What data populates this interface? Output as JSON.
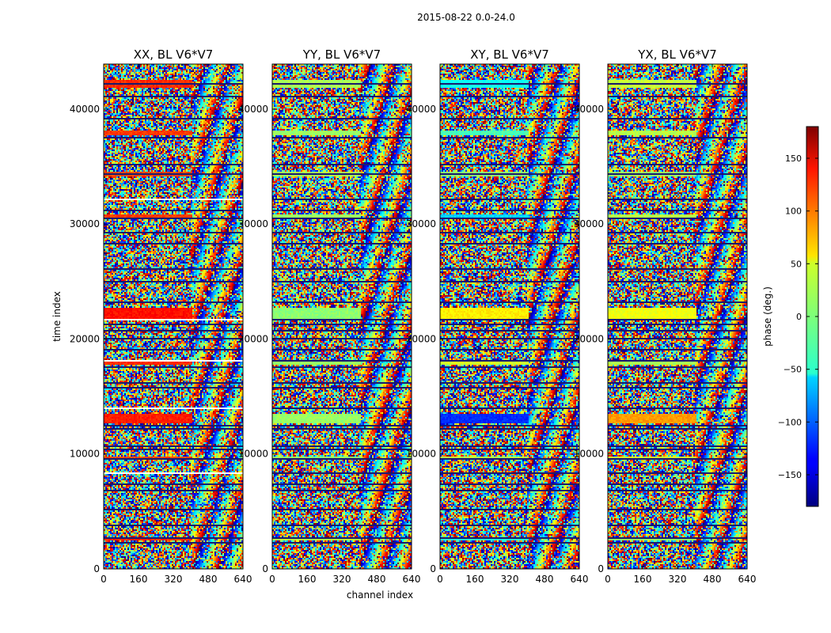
{
  "chart_data": {
    "type": "heatmap",
    "suptitle": "2015-08-22 0.0-24.0",
    "xlabel": "channel index",
    "ylabel": "time index",
    "xlim": [
      0,
      640
    ],
    "ylim": [
      0,
      43920
    ],
    "x_ticks": [
      0,
      160,
      320,
      480,
      640
    ],
    "x_tick_labels": [
      "0",
      "160",
      "320",
      "480",
      "640"
    ],
    "y_ticks": [
      0,
      10000,
      20000,
      30000,
      40000
    ],
    "y_tick_labels": [
      "0",
      "10000",
      "20000",
      "30000",
      "40000"
    ],
    "panels": [
      {
        "title": "XX, BL V6*V7",
        "pol": "XX"
      },
      {
        "title": "YY, BL V6*V7",
        "pol": "YY"
      },
      {
        "title": "XY, BL V6*V7",
        "pol": "XY"
      },
      {
        "title": "YX, BL V6*V7",
        "pol": "YX"
      }
    ],
    "colorbar": {
      "label": "phase (deg.)",
      "colormap": "jet",
      "vmin": -180,
      "vmax": 180,
      "ticks": [
        -150,
        -100,
        -50,
        0,
        50,
        100,
        150
      ],
      "tick_labels": [
        "−150",
        "−100",
        "−50",
        "0",
        "50",
        "100",
        "150"
      ]
    },
    "flagged_rows": [
      2300,
      2700,
      3800,
      5200,
      6900,
      7400,
      8400,
      9700,
      10400,
      10700,
      12300,
      12500,
      14000,
      15800,
      16200,
      17600,
      18200,
      19200,
      20100,
      20800,
      21300,
      21700,
      23300,
      25100,
      26200,
      28300,
      29300,
      30500,
      31200,
      32200,
      34400,
      35300,
      37600,
      39300,
      41200,
      42300
    ],
    "smooth_bands": [
      {
        "start": 21800,
        "end": 22700,
        "phases": [
          130,
          5,
          50,
          40
        ]
      },
      {
        "start": 12600,
        "end": 13500,
        "phases": [
          125,
          10,
          -120,
          80
        ]
      },
      {
        "start": 41900,
        "end": 42500,
        "phases": [
          120,
          15,
          -40,
          25
        ]
      },
      {
        "start": 37700,
        "end": 38100,
        "phases": [
          115,
          10,
          -20,
          20
        ]
      },
      {
        "start": 34100,
        "end": 34500,
        "phases": [
          110,
          15,
          5,
          10
        ]
      },
      {
        "start": 30400,
        "end": 30900,
        "phases": [
          115,
          10,
          -60,
          20
        ]
      },
      {
        "start": 17700,
        "end": 18100,
        "phases": [
          120,
          10,
          30,
          15
        ]
      },
      {
        "start": 9500,
        "end": 9800,
        "phases": [
          110,
          5,
          20,
          30
        ]
      },
      {
        "start": 2500,
        "end": 2800,
        "phases": [
          120,
          20,
          -30,
          10
        ]
      }
    ]
  }
}
